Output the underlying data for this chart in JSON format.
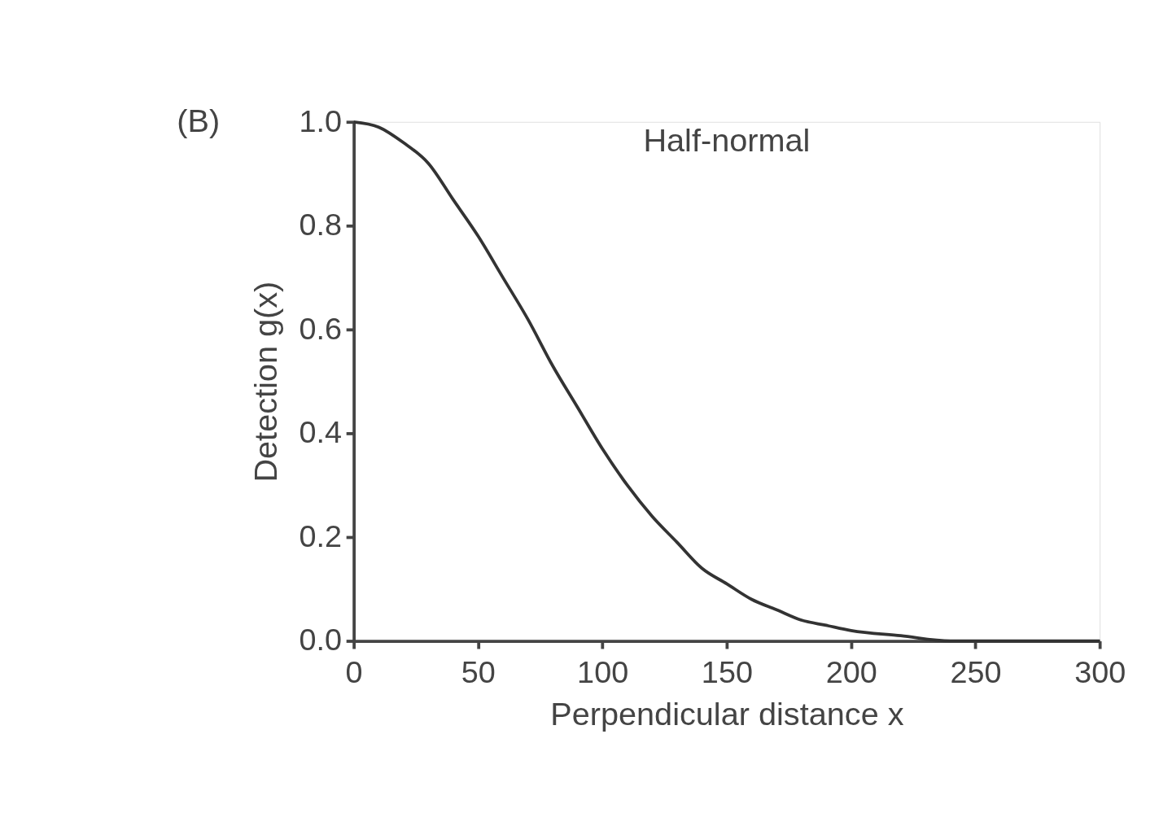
{
  "chart_data": {
    "type": "line",
    "title": "Half-normal",
    "xlabel": "Perpendicular distance x",
    "ylabel": "Detection g(x)",
    "annotations": [
      "(B)"
    ],
    "series": [
      {
        "color": "#333333",
        "x": [
          0,
          10,
          20,
          30,
          40,
          50,
          60,
          70,
          80,
          90,
          100,
          110,
          120,
          130,
          140,
          150,
          160,
          170,
          180,
          190,
          200,
          220,
          240,
          260,
          280,
          300
        ],
        "values": [
          1.0,
          0.99,
          0.96,
          0.92,
          0.85,
          0.78,
          0.7,
          0.62,
          0.53,
          0.45,
          0.37,
          0.3,
          0.24,
          0.19,
          0.14,
          0.11,
          0.08,
          0.06,
          0.04,
          0.03,
          0.02,
          0.01,
          0.0,
          0.0,
          0.0,
          0.0
        ]
      }
    ],
    "xlim": [
      0,
      300
    ],
    "xticks": [
      0,
      50,
      100,
      150,
      200,
      250,
      300
    ],
    "ylim": [
      0,
      1.0
    ],
    "yticks": [
      {
        "value": 0,
        "label": "0.0"
      },
      {
        "value": 0.2,
        "label": "0.2"
      },
      {
        "value": 0.4,
        "label": "0.4"
      },
      {
        "value": 0.6,
        "label": "0.6"
      },
      {
        "value": 0.8,
        "label": "0.8"
      },
      {
        "value": 1.0,
        "label": "1.0"
      }
    ],
    "grid": false,
    "marker": "none",
    "line_style": "solid"
  }
}
